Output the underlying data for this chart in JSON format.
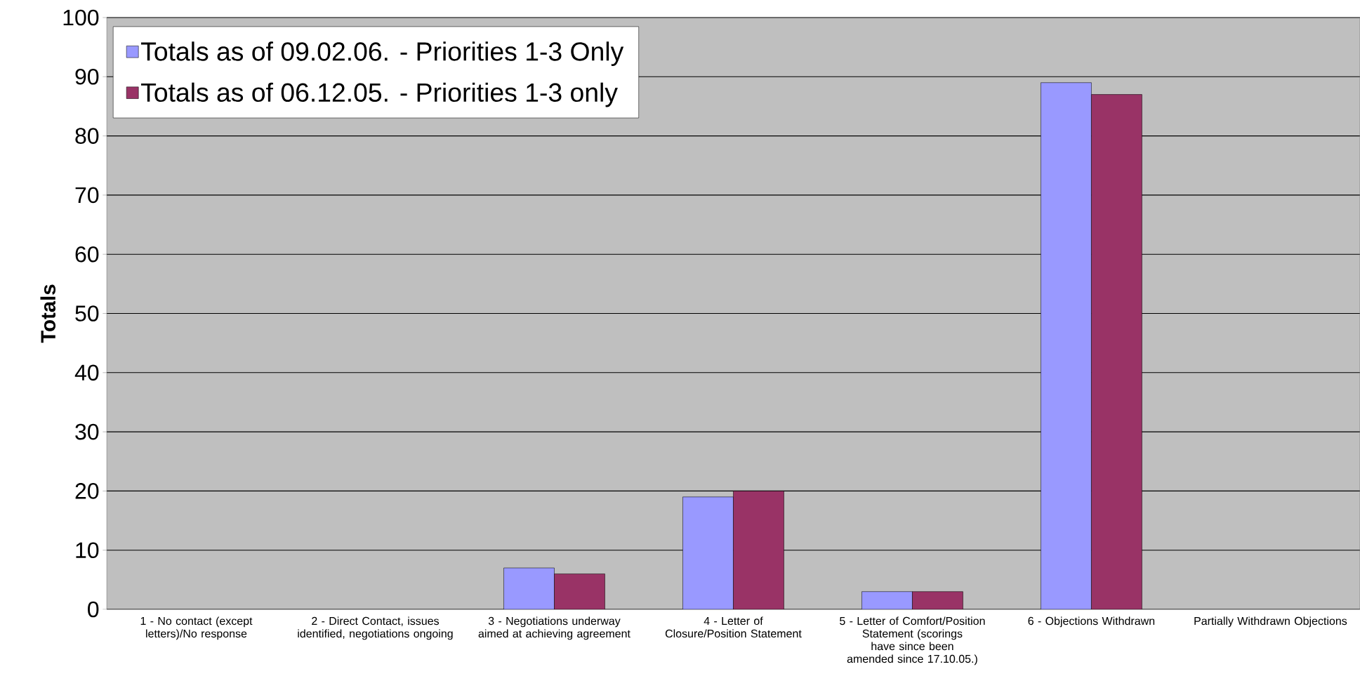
{
  "chart_data": {
    "type": "bar",
    "ylabel": "Totals",
    "categories": [
      "1 - No contact (except letters)/No response",
      "2 - Direct Contact, issues identified, negotiations ongoing",
      "3 - Negotiations underway aimed at achieving agreement",
      "4 - Letter of Closure/Position Statement",
      "5 - Letter of Comfort/Position Statement (scorings have since been amended since 17.10.05.)",
      "6 - Objections Withdrawn",
      "Partially Withdrawn Objections"
    ],
    "series": [
      {
        "name": "Totals as of 09.02.06. - Priorities 1-3 Only",
        "color": "#9999ff",
        "values": [
          null,
          null,
          7,
          19,
          3,
          89,
          null
        ]
      },
      {
        "name": "Totals as of 06.12.05. - Priorities 1-3 only",
        "color": "#993366",
        "values": [
          null,
          null,
          6,
          20,
          3,
          87,
          null
        ]
      }
    ],
    "ylim": [
      0,
      100
    ],
    "yticks": [
      0,
      10,
      20,
      30,
      40,
      50,
      60,
      70,
      80,
      90,
      100
    ],
    "grid": "y",
    "legend": "top left"
  }
}
